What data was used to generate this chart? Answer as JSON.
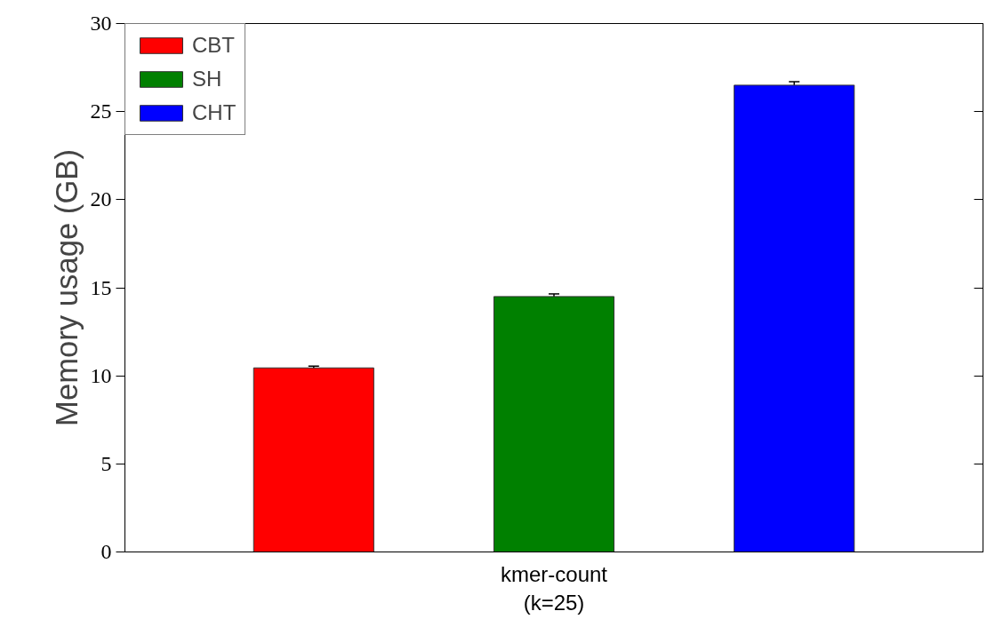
{
  "chart_data": {
    "type": "bar",
    "ylabel": "Memory usage (GB)",
    "categories": [
      "kmer-count\n(k=25)"
    ],
    "series": [
      {
        "name": "CBT",
        "color": "#ff0000",
        "values": [
          10.45
        ],
        "errors": [
          0.1
        ]
      },
      {
        "name": "SH",
        "color": "#008000",
        "values": [
          14.5
        ],
        "errors": [
          0.15
        ]
      },
      {
        "name": "CHT",
        "color": "#0000ff",
        "values": [
          26.5
        ],
        "errors": [
          0.2
        ]
      }
    ],
    "ylim": [
      0,
      30
    ],
    "yticks": [
      0,
      5,
      10,
      15,
      20,
      25,
      30
    ],
    "grid": false,
    "legend": "top left"
  }
}
